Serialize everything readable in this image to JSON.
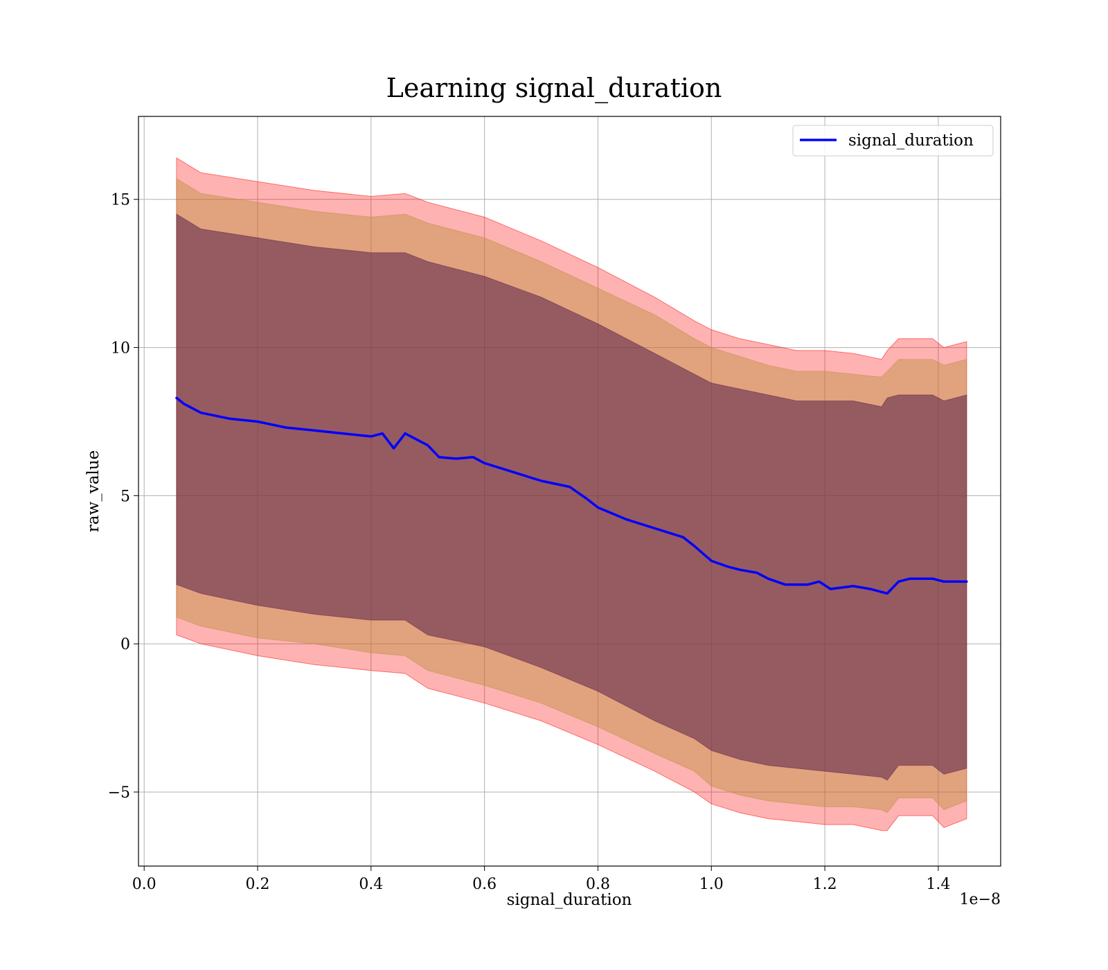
{
  "chart_data": {
    "type": "line",
    "title": "Learning signal_duration",
    "xlabel": "signal_duration",
    "ylabel": "raw_value",
    "x_offset_label": "1e−8",
    "xlim": [
      -0.01,
      1.51
    ],
    "ylim": [
      -7.5,
      17.8
    ],
    "x_ticks": [
      0.0,
      0.2,
      0.4,
      0.6,
      0.8,
      1.0,
      1.2,
      1.4
    ],
    "x_tick_labels": [
      "0.0",
      "0.2",
      "0.4",
      "0.6",
      "0.8",
      "1.0",
      "1.2",
      "1.4"
    ],
    "y_ticks": [
      -5,
      0,
      5,
      10,
      15
    ],
    "y_tick_labels": [
      "−5",
      "0",
      "5",
      "10",
      "15"
    ],
    "grid": true,
    "legend_position": "top-right",
    "series": [
      {
        "name": "signal_duration",
        "color": "#0000ff",
        "x": [
          0.057,
          0.07,
          0.1,
          0.15,
          0.2,
          0.25,
          0.3,
          0.35,
          0.4,
          0.42,
          0.44,
          0.46,
          0.5,
          0.52,
          0.55,
          0.58,
          0.6,
          0.65,
          0.7,
          0.75,
          0.78,
          0.8,
          0.85,
          0.9,
          0.95,
          0.97,
          1.0,
          1.03,
          1.05,
          1.08,
          1.1,
          1.13,
          1.15,
          1.17,
          1.19,
          1.21,
          1.25,
          1.28,
          1.3,
          1.31,
          1.33,
          1.35,
          1.39,
          1.41,
          1.45
        ],
        "y": [
          8.3,
          8.1,
          7.8,
          7.6,
          7.5,
          7.3,
          7.2,
          7.1,
          7.0,
          7.1,
          6.6,
          7.1,
          6.7,
          6.3,
          6.25,
          6.3,
          6.1,
          5.8,
          5.5,
          5.3,
          4.9,
          4.6,
          4.2,
          3.9,
          3.6,
          3.3,
          2.8,
          2.6,
          2.5,
          2.4,
          2.2,
          2.0,
          2.0,
          2.0,
          2.1,
          1.85,
          1.95,
          1.85,
          1.75,
          1.7,
          2.1,
          2.2,
          2.2,
          2.1,
          2.1
        ]
      }
    ],
    "bands": [
      {
        "color": "#ff0000",
        "opacity": 0.3,
        "x": [
          0.057,
          0.1,
          0.2,
          0.3,
          0.4,
          0.46,
          0.5,
          0.6,
          0.7,
          0.8,
          0.9,
          0.97,
          1.0,
          1.05,
          1.1,
          1.15,
          1.2,
          1.25,
          1.3,
          1.31,
          1.33,
          1.39,
          1.41,
          1.45
        ],
        "upper": [
          16.4,
          15.9,
          15.6,
          15.3,
          15.1,
          15.2,
          14.9,
          14.4,
          13.6,
          12.7,
          11.7,
          10.9,
          10.6,
          10.3,
          10.1,
          9.9,
          9.9,
          9.8,
          9.6,
          9.9,
          10.3,
          10.3,
          10.0,
          10.2
        ],
        "lower": [
          0.3,
          0.0,
          -0.4,
          -0.7,
          -0.9,
          -1.0,
          -1.5,
          -2.0,
          -2.6,
          -3.4,
          -4.3,
          -5.0,
          -5.4,
          -5.7,
          -5.9,
          -6.0,
          -6.1,
          -6.1,
          -6.3,
          -6.3,
          -5.8,
          -5.8,
          -6.2,
          -5.9
        ]
      },
      {
        "color": "#bc8f3f",
        "opacity": 0.45,
        "x": [
          0.057,
          0.1,
          0.2,
          0.3,
          0.4,
          0.46,
          0.5,
          0.6,
          0.7,
          0.8,
          0.9,
          0.97,
          1.0,
          1.05,
          1.1,
          1.15,
          1.2,
          1.25,
          1.3,
          1.31,
          1.33,
          1.39,
          1.41,
          1.45
        ],
        "upper": [
          15.7,
          15.2,
          14.9,
          14.6,
          14.4,
          14.5,
          14.2,
          13.7,
          12.9,
          12.0,
          11.1,
          10.3,
          10.0,
          9.7,
          9.4,
          9.2,
          9.2,
          9.1,
          9.0,
          9.2,
          9.6,
          9.6,
          9.4,
          9.6
        ],
        "lower": [
          0.9,
          0.6,
          0.2,
          0.0,
          -0.3,
          -0.4,
          -0.9,
          -1.4,
          -2.0,
          -2.8,
          -3.7,
          -4.3,
          -4.8,
          -5.1,
          -5.3,
          -5.4,
          -5.5,
          -5.5,
          -5.6,
          -5.7,
          -5.2,
          -5.2,
          -5.6,
          -5.3
        ]
      },
      {
        "color": "#5a2048",
        "opacity": 0.55,
        "x": [
          0.057,
          0.1,
          0.2,
          0.3,
          0.4,
          0.46,
          0.5,
          0.6,
          0.7,
          0.8,
          0.9,
          0.97,
          1.0,
          1.05,
          1.1,
          1.15,
          1.2,
          1.25,
          1.3,
          1.31,
          1.33,
          1.39,
          1.41,
          1.45
        ],
        "upper": [
          14.5,
          14.0,
          13.7,
          13.4,
          13.2,
          13.2,
          12.9,
          12.4,
          11.7,
          10.8,
          9.8,
          9.1,
          8.8,
          8.6,
          8.4,
          8.2,
          8.2,
          8.2,
          8.0,
          8.3,
          8.4,
          8.4,
          8.2,
          8.4
        ],
        "lower": [
          2.0,
          1.7,
          1.3,
          1.0,
          0.8,
          0.8,
          0.3,
          -0.1,
          -0.8,
          -1.6,
          -2.6,
          -3.2,
          -3.6,
          -3.9,
          -4.1,
          -4.2,
          -4.3,
          -4.4,
          -4.5,
          -4.6,
          -4.1,
          -4.1,
          -4.4,
          -4.2
        ]
      }
    ]
  }
}
